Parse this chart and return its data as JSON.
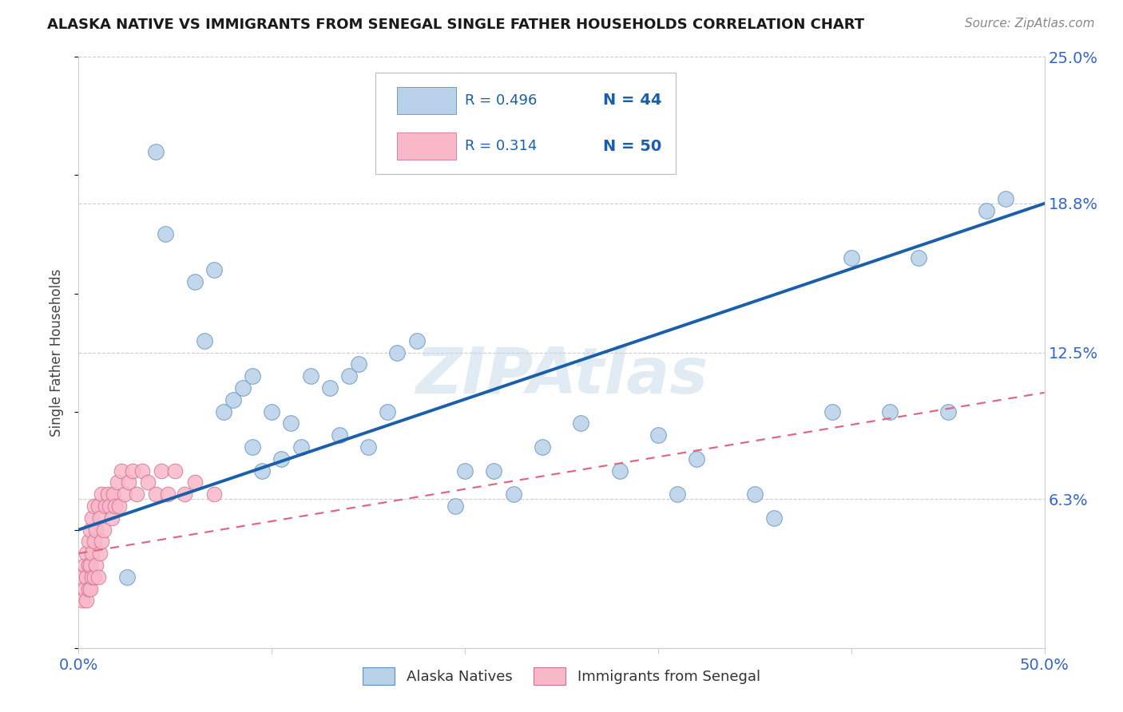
{
  "title": "ALASKA NATIVE VS IMMIGRANTS FROM SENEGAL SINGLE FATHER HOUSEHOLDS CORRELATION CHART",
  "source": "Source: ZipAtlas.com",
  "ylabel": "Single Father Households",
  "xlim": [
    0.0,
    0.5
  ],
  "ylim": [
    0.0,
    0.25
  ],
  "xticks": [
    0.0,
    0.1,
    0.2,
    0.3,
    0.4,
    0.5
  ],
  "xticklabels": [
    "0.0%",
    "",
    "",
    "",
    "",
    "50.0%"
  ],
  "ytick_positions": [
    0.0,
    0.063,
    0.125,
    0.188,
    0.25
  ],
  "ytick_labels": [
    "",
    "6.3%",
    "12.5%",
    "18.8%",
    "25.0%"
  ],
  "legend_r_blue": "R = 0.496",
  "legend_n_blue": "N = 44",
  "legend_r_pink": "R = 0.314",
  "legend_n_pink": "N = 50",
  "legend_label_blue": "Alaska Natives",
  "legend_label_pink": "Immigrants from Senegal",
  "blue_color": "#b8d0e8",
  "pink_color": "#f8b8c8",
  "trend_blue_color": "#1a5faa",
  "trend_pink_color": "#e06880",
  "blue_edge": "#6090c0",
  "pink_edge": "#d07090",
  "watermark": "ZIPAtlas",
  "blue_x": [
    0.025,
    0.04,
    0.045,
    0.06,
    0.065,
    0.07,
    0.075,
    0.08,
    0.085,
    0.09,
    0.09,
    0.095,
    0.1,
    0.105,
    0.11,
    0.115,
    0.12,
    0.13,
    0.135,
    0.14,
    0.145,
    0.15,
    0.16,
    0.165,
    0.175,
    0.195,
    0.2,
    0.215,
    0.225,
    0.24,
    0.26,
    0.28,
    0.3,
    0.31,
    0.32,
    0.35,
    0.36,
    0.39,
    0.4,
    0.42,
    0.435,
    0.45,
    0.47,
    0.48
  ],
  "blue_y": [
    0.03,
    0.21,
    0.175,
    0.155,
    0.13,
    0.16,
    0.1,
    0.105,
    0.11,
    0.085,
    0.115,
    0.075,
    0.1,
    0.08,
    0.095,
    0.085,
    0.115,
    0.11,
    0.09,
    0.115,
    0.12,
    0.085,
    0.1,
    0.125,
    0.13,
    0.06,
    0.075,
    0.075,
    0.065,
    0.085,
    0.095,
    0.075,
    0.09,
    0.065,
    0.08,
    0.065,
    0.055,
    0.1,
    0.165,
    0.1,
    0.165,
    0.1,
    0.185,
    0.19
  ],
  "pink_x": [
    0.002,
    0.002,
    0.003,
    0.003,
    0.004,
    0.004,
    0.004,
    0.005,
    0.005,
    0.005,
    0.006,
    0.006,
    0.006,
    0.007,
    0.007,
    0.007,
    0.008,
    0.008,
    0.008,
    0.009,
    0.009,
    0.01,
    0.01,
    0.011,
    0.011,
    0.012,
    0.012,
    0.013,
    0.014,
    0.015,
    0.016,
    0.017,
    0.018,
    0.019,
    0.02,
    0.021,
    0.022,
    0.024,
    0.026,
    0.028,
    0.03,
    0.033,
    0.036,
    0.04,
    0.043,
    0.046,
    0.05,
    0.055,
    0.06,
    0.07
  ],
  "pink_y": [
    0.02,
    0.03,
    0.025,
    0.035,
    0.02,
    0.03,
    0.04,
    0.025,
    0.035,
    0.045,
    0.025,
    0.035,
    0.05,
    0.03,
    0.04,
    0.055,
    0.03,
    0.045,
    0.06,
    0.035,
    0.05,
    0.03,
    0.06,
    0.04,
    0.055,
    0.045,
    0.065,
    0.05,
    0.06,
    0.065,
    0.06,
    0.055,
    0.065,
    0.06,
    0.07,
    0.06,
    0.075,
    0.065,
    0.07,
    0.075,
    0.065,
    0.075,
    0.07,
    0.065,
    0.075,
    0.065,
    0.075,
    0.065,
    0.07,
    0.065
  ],
  "blue_trend_x0": 0.0,
  "blue_trend_y0": 0.05,
  "blue_trend_x1": 0.5,
  "blue_trend_y1": 0.188,
  "pink_trend_x0": 0.0,
  "pink_trend_y0": 0.04,
  "pink_trend_x1": 0.5,
  "pink_trend_y1": 0.108
}
